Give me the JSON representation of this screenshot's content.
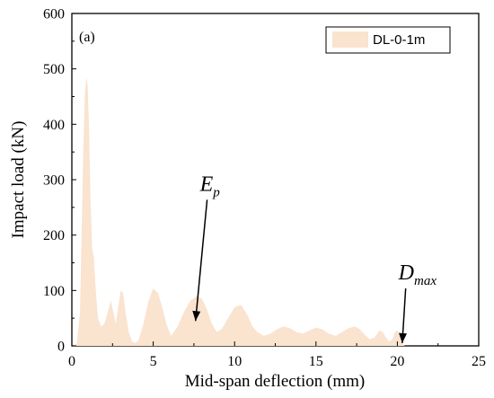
{
  "chart_data": {
    "type": "area",
    "panel_label": "(a)",
    "xlabel": "Mid-span deflection (mm)",
    "ylabel": "Impact load (kN)",
    "xlim": [
      0,
      25
    ],
    "ylim": [
      0,
      600
    ],
    "xticks": [
      0,
      5,
      10,
      15,
      20,
      25
    ],
    "yticks": [
      0,
      100,
      200,
      300,
      400,
      500,
      600
    ],
    "grid": false,
    "legend_position": "top-right",
    "series": [
      {
        "name": "DL-0-1m",
        "fill_color": "#fae3cf",
        "x": [
          0.0,
          0.3,
          0.5,
          0.6,
          0.7,
          0.8,
          0.9,
          0.97,
          1.05,
          1.15,
          1.25,
          1.35,
          1.45,
          1.6,
          1.8,
          2.0,
          2.2,
          2.4,
          2.55,
          2.7,
          2.85,
          3.0,
          3.15,
          3.3,
          3.5,
          3.7,
          3.9,
          4.1,
          4.4,
          4.7,
          5.0,
          5.3,
          5.55,
          5.8,
          6.1,
          6.5,
          6.9,
          7.3,
          7.7,
          8.0,
          8.3,
          8.6,
          8.9,
          9.2,
          9.6,
          10.0,
          10.4,
          10.8,
          11.1,
          11.4,
          11.8,
          12.2,
          12.6,
          13.0,
          13.4,
          13.8,
          14.2,
          14.6,
          15.0,
          15.4,
          15.8,
          16.2,
          16.6,
          17.0,
          17.4,
          17.7,
          18.0,
          18.3,
          18.6,
          18.9,
          19.1,
          19.3,
          19.5,
          19.7,
          19.85,
          20.0,
          20.15,
          20.3,
          20.45
        ],
        "y": [
          0,
          3,
          60,
          200,
          350,
          455,
          485,
          470,
          400,
          260,
          175,
          160,
          110,
          50,
          35,
          40,
          60,
          82,
          60,
          40,
          70,
          100,
          95,
          60,
          25,
          8,
          5,
          10,
          40,
          80,
          104,
          95,
          70,
          40,
          18,
          35,
          62,
          82,
          90,
          85,
          65,
          40,
          25,
          30,
          50,
          70,
          74,
          55,
          35,
          25,
          18,
          22,
          30,
          35,
          32,
          25,
          22,
          28,
          33,
          30,
          22,
          18,
          25,
          32,
          35,
          30,
          20,
          12,
          15,
          28,
          25,
          15,
          8,
          12,
          25,
          28,
          20,
          5,
          0
        ]
      }
    ],
    "annotations": [
      {
        "text": "E",
        "subscript": "p",
        "x_text": 8.2,
        "y_text": 280,
        "x_arrow": 7.6,
        "y_arrow": 45
      },
      {
        "text": "D",
        "subscript": "max",
        "x_text": 20.4,
        "y_text": 120,
        "x_arrow": 20.3,
        "y_arrow": 5
      }
    ]
  }
}
